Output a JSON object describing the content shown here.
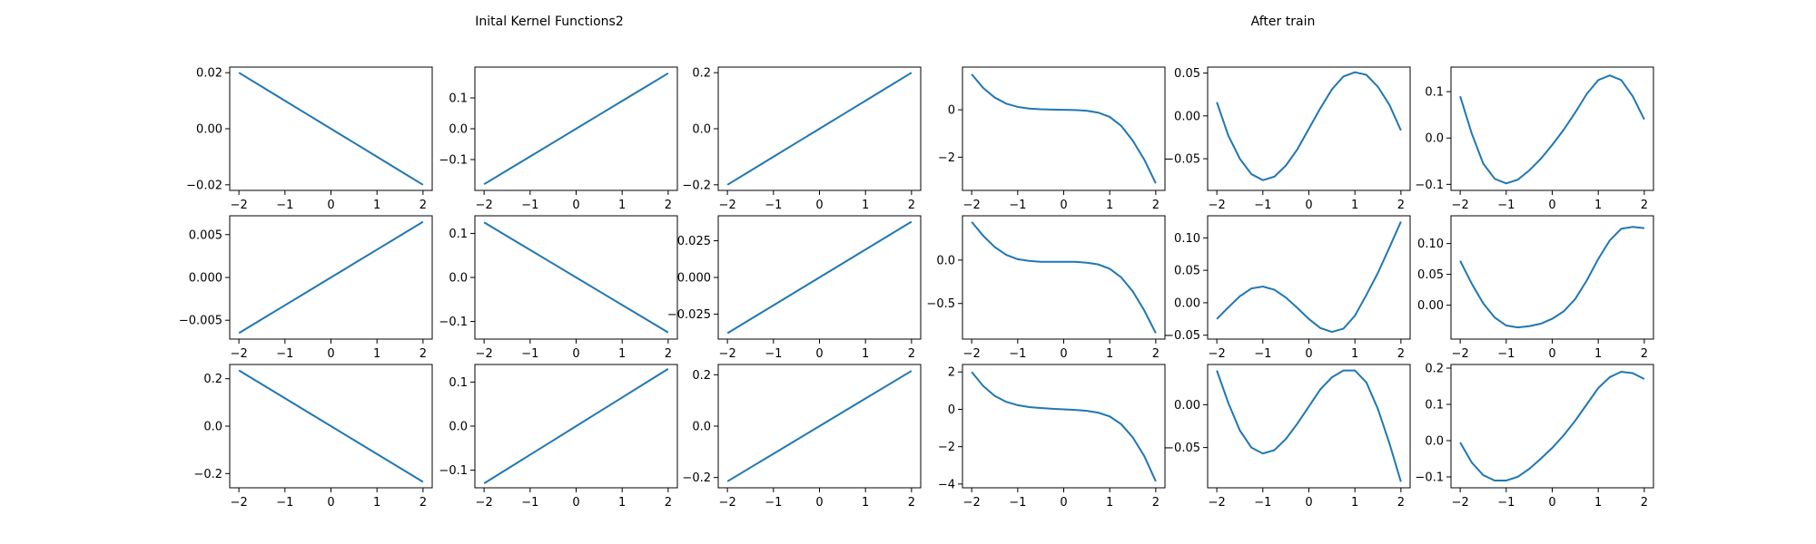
{
  "figure": {
    "titles": [
      "Inital Kernel Functions2",
      "After train"
    ]
  },
  "chart_data": [
    {
      "type": "line",
      "group": "initial",
      "row": 0,
      "col": 0,
      "xlim": [
        -2.2,
        2.2
      ],
      "ylim": [
        -0.022,
        0.022
      ],
      "xticks": [
        -2,
        -1,
        0,
        1,
        2
      ],
      "yticks": [
        {
          "v": 0.02,
          "t": "0.02"
        },
        {
          "v": 0.0,
          "t": "0.00"
        },
        {
          "v": -0.02,
          "t": "−0.02"
        }
      ],
      "x": [
        -2,
        -1.5,
        -1,
        -0.5,
        0,
        0.5,
        1,
        1.5,
        2
      ],
      "y": [
        0.02,
        0.015,
        0.01,
        0.005,
        0,
        -0.005,
        -0.01,
        -0.015,
        -0.02
      ]
    },
    {
      "type": "line",
      "group": "initial",
      "row": 0,
      "col": 1,
      "xlim": [
        -2.2,
        2.2
      ],
      "ylim": [
        -0.2,
        0.2
      ],
      "xticks": [
        -2,
        -1,
        0,
        1,
        2
      ],
      "yticks": [
        {
          "v": 0.1,
          "t": "0.1"
        },
        {
          "v": 0.0,
          "t": "0.0"
        },
        {
          "v": -0.1,
          "t": "−0.1"
        }
      ],
      "x": [
        -2,
        -1.5,
        -1,
        -0.5,
        0,
        0.5,
        1,
        1.5,
        2
      ],
      "y": [
        -0.18,
        -0.135,
        -0.09,
        -0.045,
        0,
        0.045,
        0.09,
        0.135,
        0.18
      ]
    },
    {
      "type": "line",
      "group": "initial",
      "row": 0,
      "col": 2,
      "xlim": [
        -2.2,
        2.2
      ],
      "ylim": [
        -0.22,
        0.22
      ],
      "xticks": [
        -2,
        -1,
        0,
        1,
        2
      ],
      "yticks": [
        {
          "v": 0.2,
          "t": "0.2"
        },
        {
          "v": 0.0,
          "t": "0.0"
        },
        {
          "v": -0.2,
          "t": "−0.2"
        }
      ],
      "x": [
        -2,
        -1.5,
        -1,
        -0.5,
        0,
        0.5,
        1,
        1.5,
        2
      ],
      "y": [
        -0.2,
        -0.15,
        -0.1,
        -0.05,
        0,
        0.05,
        0.1,
        0.15,
        0.2
      ]
    },
    {
      "type": "line",
      "group": "initial",
      "row": 1,
      "col": 0,
      "xlim": [
        -2.2,
        2.2
      ],
      "ylim": [
        -0.0072,
        0.0072
      ],
      "xticks": [
        -2,
        -1,
        0,
        1,
        2
      ],
      "yticks": [
        {
          "v": 0.005,
          "t": "0.005"
        },
        {
          "v": 0.0,
          "t": "0.000"
        },
        {
          "v": -0.005,
          "t": "−0.005"
        }
      ],
      "x": [
        -2,
        -1.5,
        -1,
        -0.5,
        0,
        0.5,
        1,
        1.5,
        2
      ],
      "y": [
        -0.0065,
        -0.004875,
        -0.00325,
        -0.001625,
        0,
        0.001625,
        0.00325,
        0.004875,
        0.0065
      ]
    },
    {
      "type": "line",
      "group": "initial",
      "row": 1,
      "col": 1,
      "xlim": [
        -2.2,
        2.2
      ],
      "ylim": [
        -0.14,
        0.14
      ],
      "xticks": [
        -2,
        -1,
        0,
        1,
        2
      ],
      "yticks": [
        {
          "v": 0.1,
          "t": "0.1"
        },
        {
          "v": 0.0,
          "t": "0.0"
        },
        {
          "v": -0.1,
          "t": "−0.1"
        }
      ],
      "x": [
        -2,
        -1.5,
        -1,
        -0.5,
        0,
        0.5,
        1,
        1.5,
        2
      ],
      "y": [
        0.125,
        0.09375,
        0.0625,
        0.03125,
        0,
        -0.03125,
        -0.0625,
        -0.09375,
        -0.125
      ]
    },
    {
      "type": "line",
      "group": "initial",
      "row": 1,
      "col": 2,
      "xlim": [
        -2.2,
        2.2
      ],
      "ylim": [
        -0.042,
        0.042
      ],
      "xticks": [
        -2,
        -1,
        0,
        1,
        2
      ],
      "yticks": [
        {
          "v": 0.025,
          "t": "0.025"
        },
        {
          "v": 0.0,
          "t": "0.000"
        },
        {
          "v": -0.025,
          "t": "−0.025"
        }
      ],
      "x": [
        -2,
        -1.5,
        -1,
        -0.5,
        0,
        0.5,
        1,
        1.5,
        2
      ],
      "y": [
        -0.038,
        -0.0285,
        -0.019,
        -0.0095,
        0,
        0.0095,
        0.019,
        0.0285,
        0.038
      ]
    },
    {
      "type": "line",
      "group": "initial",
      "row": 2,
      "col": 0,
      "xlim": [
        -2.2,
        2.2
      ],
      "ylim": [
        -0.26,
        0.26
      ],
      "xticks": [
        -2,
        -1,
        0,
        1,
        2
      ],
      "yticks": [
        {
          "v": 0.2,
          "t": "0.2"
        },
        {
          "v": 0.0,
          "t": "0.0"
        },
        {
          "v": -0.2,
          "t": "−0.2"
        }
      ],
      "x": [
        -2,
        -1.5,
        -1,
        -0.5,
        0,
        0.5,
        1,
        1.5,
        2
      ],
      "y": [
        0.235,
        0.17625,
        0.1175,
        0.05875,
        0,
        -0.05875,
        -0.1175,
        -0.17625,
        -0.235
      ]
    },
    {
      "type": "line",
      "group": "initial",
      "row": 2,
      "col": 1,
      "xlim": [
        -2.2,
        2.2
      ],
      "ylim": [
        -0.14,
        0.14
      ],
      "xticks": [
        -2,
        -1,
        0,
        1,
        2
      ],
      "yticks": [
        {
          "v": 0.1,
          "t": "0.1"
        },
        {
          "v": 0.0,
          "t": "0.0"
        },
        {
          "v": -0.1,
          "t": "−0.1"
        }
      ],
      "x": [
        -2,
        -1.5,
        -1,
        -0.5,
        0,
        0.5,
        1,
        1.5,
        2
      ],
      "y": [
        -0.13,
        -0.0975,
        -0.065,
        -0.0325,
        0,
        0.0325,
        0.065,
        0.0975,
        0.13
      ]
    },
    {
      "type": "line",
      "group": "initial",
      "row": 2,
      "col": 2,
      "xlim": [
        -2.2,
        2.2
      ],
      "ylim": [
        -0.24,
        0.24
      ],
      "xticks": [
        -2,
        -1,
        0,
        1,
        2
      ],
      "yticks": [
        {
          "v": 0.2,
          "t": "0.2"
        },
        {
          "v": 0.0,
          "t": "0.0"
        },
        {
          "v": -0.2,
          "t": "−0.2"
        }
      ],
      "x": [
        -2,
        -1.5,
        -1,
        -0.5,
        0,
        0.5,
        1,
        1.5,
        2
      ],
      "y": [
        -0.215,
        -0.16125,
        -0.1075,
        -0.05375,
        0,
        0.05375,
        0.1075,
        0.16125,
        0.215
      ]
    },
    {
      "type": "line",
      "group": "after",
      "row": 0,
      "col": 0,
      "xlim": [
        -2.2,
        2.2
      ],
      "ylim": [
        -3.4,
        1.8
      ],
      "xticks": [
        -2,
        -1,
        0,
        1,
        2
      ],
      "yticks": [
        {
          "v": 0,
          "t": "0"
        },
        {
          "v": -2,
          "t": "−2"
        }
      ],
      "x": [
        -2,
        -1.75,
        -1.5,
        -1.25,
        -1,
        -0.75,
        -0.5,
        -0.25,
        0,
        0.25,
        0.5,
        0.75,
        1,
        1.25,
        1.5,
        1.75,
        2
      ],
      "y": [
        1.5,
        0.92,
        0.52,
        0.26,
        0.12,
        0.05,
        0.02,
        0.01,
        0.0,
        -0.01,
        -0.04,
        -0.12,
        -0.3,
        -0.68,
        -1.3,
        -2.1,
        -3.1
      ]
    },
    {
      "type": "line",
      "group": "after",
      "row": 0,
      "col": 1,
      "xlim": [
        -2.2,
        2.2
      ],
      "ylim": [
        -0.087,
        0.057
      ],
      "xticks": [
        -2,
        -1,
        0,
        1,
        2
      ],
      "yticks": [
        {
          "v": 0.05,
          "t": "0.05"
        },
        {
          "v": 0.0,
          "t": "0.00"
        },
        {
          "v": -0.05,
          "t": "−0.05"
        }
      ],
      "x": [
        -2,
        -1.75,
        -1.5,
        -1.25,
        -1,
        -0.75,
        -0.5,
        -0.25,
        0,
        0.25,
        0.5,
        0.75,
        1,
        1.25,
        1.5,
        1.75,
        2
      ],
      "y": [
        0.016,
        -0.023,
        -0.05,
        -0.068,
        -0.075,
        -0.071,
        -0.058,
        -0.039,
        -0.015,
        0.009,
        0.031,
        0.046,
        0.051,
        0.048,
        0.034,
        0.013,
        -0.017
      ]
    },
    {
      "type": "line",
      "group": "after",
      "row": 0,
      "col": 2,
      "xlim": [
        -2.2,
        2.2
      ],
      "ylim": [
        -0.113,
        0.153
      ],
      "xticks": [
        -2,
        -1,
        0,
        1,
        2
      ],
      "yticks": [
        {
          "v": 0.1,
          "t": "0.1"
        },
        {
          "v": 0.0,
          "t": "0.0"
        },
        {
          "v": -0.1,
          "t": "−0.1"
        }
      ],
      "x": [
        -2,
        -1.75,
        -1.5,
        -1.25,
        -1,
        -0.75,
        -0.5,
        -0.25,
        0,
        0.25,
        0.5,
        0.75,
        1,
        1.25,
        1.5,
        1.75,
        2
      ],
      "y": [
        0.09,
        0.01,
        -0.055,
        -0.088,
        -0.098,
        -0.09,
        -0.07,
        -0.045,
        -0.015,
        0.018,
        0.055,
        0.095,
        0.125,
        0.135,
        0.125,
        0.09,
        0.04
      ]
    },
    {
      "type": "line",
      "group": "after",
      "row": 1,
      "col": 0,
      "xlim": [
        -2.2,
        2.2
      ],
      "ylim": [
        -0.91,
        0.51
      ],
      "xticks": [
        -2,
        -1,
        0,
        1,
        2
      ],
      "yticks": [
        {
          "v": 0.0,
          "t": "0.0"
        },
        {
          "v": -0.5,
          "t": "−0.5"
        }
      ],
      "x": [
        -2,
        -1.75,
        -1.5,
        -1.25,
        -1,
        -0.75,
        -0.5,
        -0.25,
        0,
        0.25,
        0.5,
        0.75,
        1,
        1.25,
        1.5,
        1.75,
        2
      ],
      "y": [
        0.44,
        0.28,
        0.15,
        0.06,
        0.01,
        -0.01,
        -0.02,
        -0.02,
        -0.02,
        -0.02,
        -0.03,
        -0.05,
        -0.1,
        -0.2,
        -0.36,
        -0.58,
        -0.84
      ]
    },
    {
      "type": "line",
      "group": "after",
      "row": 1,
      "col": 1,
      "xlim": [
        -2.2,
        2.2
      ],
      "ylim": [
        -0.056,
        0.134
      ],
      "xticks": [
        -2,
        -1,
        0,
        1,
        2
      ],
      "yticks": [
        {
          "v": 0.1,
          "t": "0.10"
        },
        {
          "v": 0.05,
          "t": "0.05"
        },
        {
          "v": 0.0,
          "t": "0.00"
        },
        {
          "v": -0.05,
          "t": "−0.05"
        }
      ],
      "x": [
        -2,
        -1.75,
        -1.5,
        -1.25,
        -1,
        -0.75,
        -0.5,
        -0.25,
        0,
        0.25,
        0.5,
        0.75,
        1,
        1.25,
        1.5,
        1.75,
        2
      ],
      "y": [
        -0.025,
        -0.007,
        0.01,
        0.022,
        0.025,
        0.02,
        0.008,
        -0.008,
        -0.025,
        -0.039,
        -0.045,
        -0.04,
        -0.02,
        0.012,
        0.046,
        0.085,
        0.125
      ]
    },
    {
      "type": "line",
      "group": "after",
      "row": 1,
      "col": 2,
      "xlim": [
        -2.2,
        2.2
      ],
      "ylim": [
        -0.055,
        0.145
      ],
      "xticks": [
        -2,
        -1,
        0,
        1,
        2
      ],
      "yticks": [
        {
          "v": 0.1,
          "t": "0.10"
        },
        {
          "v": 0.05,
          "t": "0.05"
        },
        {
          "v": 0.0,
          "t": "0.00"
        }
      ],
      "x": [
        -2,
        -1.75,
        -1.5,
        -1.25,
        -1,
        -0.75,
        -0.5,
        -0.25,
        0,
        0.25,
        0.5,
        0.75,
        1,
        1.25,
        1.5,
        1.75,
        2
      ],
      "y": [
        0.072,
        0.035,
        0.003,
        -0.02,
        -0.033,
        -0.036,
        -0.034,
        -0.03,
        -0.022,
        -0.01,
        0.01,
        0.04,
        0.075,
        0.105,
        0.124,
        0.127,
        0.125
      ]
    },
    {
      "type": "line",
      "group": "after",
      "row": 2,
      "col": 0,
      "xlim": [
        -2.2,
        2.2
      ],
      "ylim": [
        -4.2,
        2.4
      ],
      "xticks": [
        -2,
        -1,
        0,
        1,
        2
      ],
      "yticks": [
        {
          "v": 2,
          "t": "2"
        },
        {
          "v": 0,
          "t": "0"
        },
        {
          "v": -2,
          "t": "−2"
        },
        {
          "v": -4,
          "t": "−4"
        }
      ],
      "x": [
        -2,
        -1.75,
        -1.5,
        -1.25,
        -1,
        -0.75,
        -0.5,
        -0.25,
        0,
        0.25,
        0.5,
        0.75,
        1,
        1.25,
        1.5,
        1.75,
        2
      ],
      "y": [
        2.0,
        1.25,
        0.72,
        0.4,
        0.22,
        0.12,
        0.07,
        0.03,
        0.0,
        -0.03,
        -0.08,
        -0.18,
        -0.38,
        -0.8,
        -1.5,
        -2.5,
        -3.85
      ]
    },
    {
      "type": "line",
      "group": "after",
      "row": 2,
      "col": 1,
      "xlim": [
        -2.2,
        2.2
      ],
      "ylim": [
        -0.097,
        0.047
      ],
      "xticks": [
        -2,
        -1,
        0,
        1,
        2
      ],
      "yticks": [
        {
          "v": 0.0,
          "t": "0.00"
        },
        {
          "v": -0.05,
          "t": "−0.05"
        }
      ],
      "x": [
        -2,
        -1.75,
        -1.5,
        -1.25,
        -1,
        -0.75,
        -0.5,
        -0.25,
        0,
        0.25,
        0.5,
        0.75,
        1,
        1.25,
        1.5,
        1.75,
        2
      ],
      "y": [
        0.04,
        0.002,
        -0.03,
        -0.05,
        -0.057,
        -0.053,
        -0.04,
        -0.022,
        -0.002,
        0.018,
        0.032,
        0.04,
        0.04,
        0.026,
        -0.005,
        -0.045,
        -0.09
      ]
    },
    {
      "type": "line",
      "group": "after",
      "row": 2,
      "col": 2,
      "xlim": [
        -2.2,
        2.2
      ],
      "ylim": [
        -0.13,
        0.21
      ],
      "xticks": [
        -2,
        -1,
        0,
        1,
        2
      ],
      "yticks": [
        {
          "v": 0.2,
          "t": "0.2"
        },
        {
          "v": 0.1,
          "t": "0.1"
        },
        {
          "v": 0.0,
          "t": "0.0"
        },
        {
          "v": -0.1,
          "t": "−0.1"
        }
      ],
      "x": [
        -2,
        -1.75,
        -1.5,
        -1.25,
        -1,
        -0.75,
        -0.5,
        -0.25,
        0,
        0.25,
        0.5,
        0.75,
        1,
        1.25,
        1.5,
        1.75,
        2
      ],
      "y": [
        -0.005,
        -0.06,
        -0.095,
        -0.11,
        -0.11,
        -0.1,
        -0.078,
        -0.05,
        -0.02,
        0.015,
        0.055,
        0.1,
        0.145,
        0.175,
        0.19,
        0.186,
        0.17
      ]
    }
  ]
}
